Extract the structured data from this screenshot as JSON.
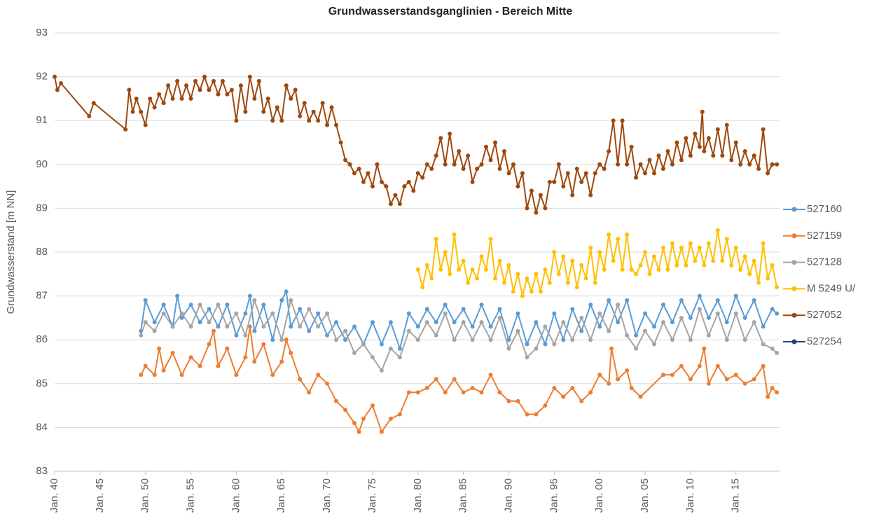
{
  "chart_data": {
    "type": "line",
    "title": "Grundwasserstandsganglinien  - Bereich Mitte",
    "y_label": "Grundwasserstand [m NN]",
    "xlim": [
      1940,
      2019.8
    ],
    "ylim": [
      83,
      93
    ],
    "yticks": [
      83,
      84,
      85,
      86,
      87,
      88,
      89,
      90,
      91,
      92,
      93
    ],
    "xticks": [
      {
        "value": 1940,
        "label": "Jan. 40"
      },
      {
        "value": 1945,
        "label": "Jan. 45"
      },
      {
        "value": 1950,
        "label": "Jan. 50"
      },
      {
        "value": 1955,
        "label": "Jan. 55"
      },
      {
        "value": 1960,
        "label": "Jan. 60"
      },
      {
        "value": 1965,
        "label": "Jan. 65"
      },
      {
        "value": 1970,
        "label": "Jan. 70"
      },
      {
        "value": 1975,
        "label": "Jan. 75"
      },
      {
        "value": 1980,
        "label": "Jan. 80"
      },
      {
        "value": 1985,
        "label": "Jan. 85"
      },
      {
        "value": 1990,
        "label": "Jan. 90"
      },
      {
        "value": 1995,
        "label": "Jan. 95"
      },
      {
        "value": 2000,
        "label": "Jan. 00"
      },
      {
        "value": 2005,
        "label": "Jan. 05"
      },
      {
        "value": 2010,
        "label": "Jan. 10"
      },
      {
        "value": 2015,
        "label": "Jan. 15"
      }
    ],
    "grid": true,
    "legend": "right",
    "series": [
      {
        "name": "527160",
        "color": "#5b9bd5",
        "x": [
          1949.5,
          1950,
          1951,
          1952,
          1953,
          1953.5,
          1954,
          1955,
          1956,
          1957,
          1958,
          1959,
          1960,
          1961,
          1961.5,
          1962,
          1963,
          1964,
          1965,
          1965.5,
          1966,
          1967,
          1968,
          1969,
          1970,
          1971,
          1972,
          1973,
          1974,
          1975,
          1976,
          1977,
          1978,
          1979,
          1980,
          1981,
          1982,
          1983,
          1984,
          1985,
          1986,
          1987,
          1988,
          1989,
          1990,
          1991,
          1992,
          1993,
          1994,
          1995,
          1996,
          1997,
          1998,
          1999,
          2000,
          2001,
          2002,
          2003,
          2004,
          2005,
          2006,
          2007,
          2008,
          2009,
          2010,
          2011,
          2012,
          2013,
          2014,
          2015,
          2016,
          2017,
          2018,
          2019,
          2019.5
        ],
        "values": [
          86.2,
          86.9,
          86.4,
          86.8,
          86.3,
          87.0,
          86.5,
          86.8,
          86.4,
          86.7,
          86.3,
          86.8,
          86.1,
          86.6,
          87.0,
          86.2,
          86.8,
          86.0,
          86.9,
          87.1,
          86.3,
          86.7,
          86.2,
          86.6,
          86.1,
          86.4,
          86.0,
          86.3,
          85.9,
          86.4,
          85.9,
          86.4,
          85.8,
          86.6,
          86.3,
          86.7,
          86.4,
          86.8,
          86.4,
          86.7,
          86.3,
          86.8,
          86.3,
          86.7,
          86.0,
          86.6,
          85.9,
          86.4,
          85.9,
          86.6,
          86.0,
          86.7,
          86.2,
          86.8,
          86.3,
          86.9,
          86.4,
          86.9,
          86.1,
          86.6,
          86.3,
          86.8,
          86.4,
          86.9,
          86.5,
          87.0,
          86.5,
          86.9,
          86.4,
          87.0,
          86.5,
          86.9,
          86.3,
          86.7,
          86.6
        ]
      },
      {
        "name": "527159",
        "color": "#ed7d31",
        "x": [
          1949.5,
          1950,
          1951,
          1951.5,
          1952,
          1953,
          1954,
          1955,
          1956,
          1957,
          1957.5,
          1958,
          1959,
          1960,
          1961,
          1961.5,
          1962,
          1963,
          1964,
          1965,
          1965.5,
          1966,
          1967,
          1968,
          1969,
          1970,
          1971,
          1972,
          1973,
          1973.5,
          1974,
          1975,
          1976,
          1977,
          1978,
          1979,
          1980,
          1981,
          1982,
          1983,
          1984,
          1985,
          1986,
          1987,
          1988,
          1989,
          1990,
          1991,
          1992,
          1993,
          1994,
          1995,
          1996,
          1997,
          1998,
          1999,
          2000,
          2001,
          2001.3,
          2002,
          2003,
          2003.5,
          2004.5,
          2007,
          2008,
          2009,
          2010,
          2011,
          2011.5,
          2012,
          2013,
          2014,
          2015,
          2016,
          2017,
          2018,
          2018.5,
          2019,
          2019.5
        ],
        "values": [
          85.2,
          85.4,
          85.2,
          85.8,
          85.3,
          85.7,
          85.2,
          85.6,
          85.4,
          85.9,
          86.2,
          85.4,
          85.8,
          85.2,
          85.6,
          86.3,
          85.5,
          85.9,
          85.2,
          85.5,
          86.0,
          85.7,
          85.1,
          84.8,
          85.2,
          85.0,
          84.6,
          84.4,
          84.1,
          83.9,
          84.2,
          84.5,
          83.9,
          84.2,
          84.3,
          84.8,
          84.8,
          84.9,
          85.1,
          84.8,
          85.1,
          84.8,
          84.9,
          84.8,
          85.2,
          84.8,
          84.6,
          84.6,
          84.3,
          84.3,
          84.5,
          84.9,
          84.7,
          84.9,
          84.6,
          84.8,
          85.2,
          85.0,
          85.8,
          85.1,
          85.3,
          84.9,
          84.7,
          85.2,
          85.2,
          85.4,
          85.1,
          85.4,
          85.8,
          85.0,
          85.4,
          85.1,
          85.2,
          85.0,
          85.1,
          85.4,
          84.7,
          84.9,
          84.8
        ]
      },
      {
        "name": "527128",
        "color": "#a5a5a5",
        "x": [
          1949.5,
          1950,
          1951,
          1952,
          1953,
          1954,
          1955,
          1956,
          1957,
          1958,
          1959,
          1960,
          1961,
          1962,
          1963,
          1964,
          1965,
          1966,
          1967,
          1968,
          1969,
          1970,
          1971,
          1972,
          1973,
          1974,
          1975,
          1976,
          1977,
          1978,
          1979,
          1980,
          1981,
          1982,
          1983,
          1984,
          1985,
          1986,
          1987,
          1988,
          1989,
          1990,
          1991,
          1992,
          1993,
          1994,
          1995,
          1996,
          1997,
          1998,
          1999,
          2000,
          2001,
          2002,
          2003,
          2004,
          2005,
          2006,
          2007,
          2008,
          2009,
          2010,
          2011,
          2012,
          2013,
          2014,
          2015,
          2016,
          2017,
          2018,
          2019,
          2019.5
        ],
        "values": [
          86.1,
          86.4,
          86.2,
          86.6,
          86.3,
          86.6,
          86.3,
          86.8,
          86.4,
          86.8,
          86.3,
          86.6,
          86.1,
          86.9,
          86.3,
          86.6,
          86.0,
          86.9,
          86.3,
          86.7,
          86.3,
          86.6,
          86.0,
          86.2,
          85.7,
          85.9,
          85.6,
          85.3,
          85.8,
          85.6,
          86.2,
          86.0,
          86.4,
          86.1,
          86.6,
          86.0,
          86.4,
          86.0,
          86.4,
          86.0,
          86.5,
          85.8,
          86.2,
          85.6,
          85.8,
          86.3,
          85.9,
          86.4,
          86.0,
          86.5,
          86.0,
          86.6,
          86.2,
          86.8,
          86.1,
          85.8,
          86.2,
          85.9,
          86.4,
          86.0,
          86.5,
          86.0,
          86.7,
          86.1,
          86.6,
          86.0,
          86.6,
          86.0,
          86.4,
          85.9,
          85.8,
          85.7
        ]
      },
      {
        "name": "M 5249 U/",
        "color": "#ffc000",
        "x": [
          1980,
          1980.5,
          1981,
          1981.5,
          1982,
          1982.5,
          1983,
          1983.5,
          1984,
          1984.5,
          1985,
          1985.5,
          1986,
          1986.5,
          1987,
          1987.5,
          1988,
          1988.5,
          1989,
          1989.5,
          1990,
          1990.5,
          1991,
          1991.5,
          1992,
          1992.5,
          1993,
          1993.5,
          1994,
          1994.5,
          1995,
          1995.5,
          1996,
          1996.5,
          1997,
          1997.5,
          1998,
          1998.5,
          1999,
          1999.5,
          2000,
          2000.5,
          2001,
          2001.5,
          2002,
          2002.5,
          2003,
          2003.5,
          2004,
          2004.5,
          2005,
          2005.5,
          2006,
          2006.5,
          2007,
          2007.5,
          2008,
          2008.5,
          2009,
          2009.5,
          2010,
          2010.5,
          2011,
          2011.5,
          2012,
          2012.5,
          2013,
          2013.5,
          2014,
          2014.5,
          2015,
          2015.5,
          2016,
          2016.5,
          2017,
          2017.5,
          2018,
          2018.5,
          2019,
          2019.5
        ],
        "values": [
          87.6,
          87.2,
          87.7,
          87.4,
          88.3,
          87.6,
          88.0,
          87.5,
          88.4,
          87.6,
          87.8,
          87.3,
          87.6,
          87.4,
          87.9,
          87.6,
          88.3,
          87.4,
          87.8,
          87.3,
          87.7,
          87.1,
          87.5,
          87.0,
          87.4,
          87.1,
          87.5,
          87.1,
          87.6,
          87.3,
          88.0,
          87.5,
          87.9,
          87.3,
          87.8,
          87.2,
          87.7,
          87.4,
          88.1,
          87.3,
          88.0,
          87.6,
          88.4,
          87.8,
          88.3,
          87.6,
          88.4,
          87.6,
          87.5,
          87.7,
          88.0,
          87.5,
          87.9,
          87.6,
          88.1,
          87.6,
          88.2,
          87.7,
          88.1,
          87.7,
          88.2,
          87.8,
          88.1,
          87.7,
          88.2,
          87.8,
          88.5,
          87.8,
          88.3,
          87.7,
          88.1,
          87.6,
          87.9,
          87.5,
          87.8,
          87.3,
          88.2,
          87.4,
          87.7,
          87.2
        ]
      },
      {
        "name": "527052",
        "color": "#9e480e",
        "x": [
          1940,
          1940.3,
          1940.7,
          1943.8,
          1944.3,
          1947.8,
          1948.2,
          1948.6,
          1949,
          1949.5,
          1950,
          1950.5,
          1951,
          1951.5,
          1952,
          1952.5,
          1953,
          1953.5,
          1954,
          1954.5,
          1955,
          1955.5,
          1956,
          1956.5,
          1957,
          1957.5,
          1958,
          1958.5,
          1959,
          1959.5,
          1960,
          1960.5,
          1961,
          1961.5,
          1962,
          1962.5,
          1963,
          1963.5,
          1964,
          1964.5,
          1965,
          1965.5,
          1966,
          1966.5,
          1967,
          1967.5,
          1968,
          1968.5,
          1969,
          1969.5,
          1970,
          1970.5,
          1971,
          1971.5,
          1972,
          1972.5,
          1973,
          1973.5,
          1974,
          1974.5,
          1975,
          1975.5,
          1976,
          1976.5,
          1977,
          1977.5,
          1978,
          1978.5,
          1979,
          1979.5,
          1980,
          1980.5,
          1981,
          1981.5,
          1982,
          1982.5,
          1983,
          1983.5,
          1984,
          1984.5,
          1985,
          1985.5,
          1986,
          1986.5,
          1987,
          1987.5,
          1988,
          1988.5,
          1989,
          1989.5,
          1990,
          1990.5,
          1991,
          1991.5,
          1992,
          1992.5,
          1993,
          1993.5,
          1994,
          1994.5,
          1995,
          1995.5,
          1996,
          1996.5,
          1997,
          1997.5,
          1998,
          1998.5,
          1999,
          1999.5,
          2000,
          2000.5,
          2001,
          2001.5,
          2002,
          2002.5,
          2003,
          2003.5,
          2004,
          2004.5,
          2005,
          2005.5,
          2006,
          2006.5,
          2007,
          2007.5,
          2008,
          2008.5,
          2009,
          2009.5,
          2010,
          2010.5,
          2011,
          2011.3,
          2011.5,
          2012,
          2012.5,
          2013,
          2013.5,
          2014,
          2014.5,
          2015,
          2015.5,
          2016,
          2016.5,
          2017,
          2017.5,
          2018,
          2018.5,
          2019,
          2019.5
        ],
        "values": [
          92.0,
          91.7,
          91.85,
          91.1,
          91.4,
          90.8,
          91.7,
          91.2,
          91.5,
          91.2,
          90.9,
          91.5,
          91.3,
          91.6,
          91.4,
          91.8,
          91.5,
          91.9,
          91.5,
          91.8,
          91.5,
          91.9,
          91.7,
          92.0,
          91.7,
          91.9,
          91.6,
          91.9,
          91.6,
          91.7,
          91.0,
          91.8,
          91.2,
          92.0,
          91.5,
          91.9,
          91.2,
          91.5,
          91.0,
          91.3,
          91.0,
          91.8,
          91.5,
          91.7,
          91.1,
          91.4,
          91.0,
          91.2,
          91.0,
          91.4,
          90.9,
          91.3,
          90.9,
          90.5,
          90.1,
          90.0,
          89.8,
          89.9,
          89.6,
          89.8,
          89.5,
          90.0,
          89.6,
          89.5,
          89.1,
          89.3,
          89.1,
          89.5,
          89.6,
          89.4,
          89.8,
          89.7,
          90.0,
          89.9,
          90.2,
          90.6,
          90.0,
          90.7,
          90.0,
          90.3,
          89.9,
          90.2,
          89.6,
          89.9,
          90.0,
          90.4,
          90.1,
          90.5,
          89.9,
          90.3,
          89.8,
          90.0,
          89.5,
          89.8,
          89.0,
          89.4,
          88.9,
          89.3,
          89.0,
          89.6,
          89.6,
          90.0,
          89.5,
          89.8,
          89.3,
          89.9,
          89.6,
          89.8,
          89.3,
          89.8,
          90.0,
          89.9,
          90.3,
          91.0,
          90.0,
          91.0,
          90.0,
          90.4,
          89.7,
          90.0,
          89.8,
          90.1,
          89.8,
          90.2,
          89.9,
          90.3,
          90.0,
          90.5,
          90.1,
          90.6,
          90.2,
          90.7,
          90.4,
          91.2,
          90.3,
          90.6,
          90.2,
          90.8,
          90.2,
          90.9,
          90.1,
          90.5,
          90.0,
          90.3,
          90.0,
          90.2,
          89.9,
          90.8,
          89.8,
          90.0,
          90.0
        ]
      },
      {
        "name": "527254",
        "color": "#264478",
        "x": [],
        "values": []
      }
    ]
  }
}
